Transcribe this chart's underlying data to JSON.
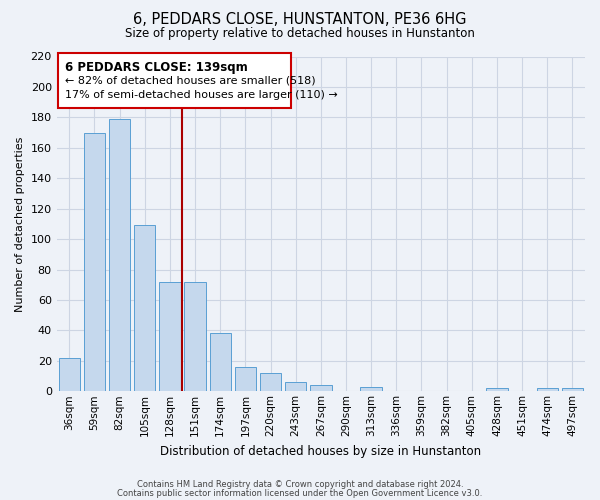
{
  "title": "6, PEDDARS CLOSE, HUNSTANTON, PE36 6HG",
  "subtitle": "Size of property relative to detached houses in Hunstanton",
  "xlabel": "Distribution of detached houses by size in Hunstanton",
  "ylabel": "Number of detached properties",
  "bin_labels": [
    "36sqm",
    "59sqm",
    "82sqm",
    "105sqm",
    "128sqm",
    "151sqm",
    "174sqm",
    "197sqm",
    "220sqm",
    "243sqm",
    "267sqm",
    "290sqm",
    "313sqm",
    "336sqm",
    "359sqm",
    "382sqm",
    "405sqm",
    "428sqm",
    "451sqm",
    "474sqm",
    "497sqm"
  ],
  "bar_values": [
    22,
    170,
    179,
    109,
    72,
    72,
    38,
    16,
    12,
    6,
    4,
    0,
    3,
    0,
    0,
    0,
    0,
    2,
    0,
    2,
    2
  ],
  "bar_color": "#c5d8ed",
  "bar_edge_color": "#5a9fd4",
  "vline_color": "#aa0000",
  "annotation_title": "6 PEDDARS CLOSE: 139sqm",
  "annotation_line1": "← 82% of detached houses are smaller (518)",
  "annotation_line2": "17% of semi-detached houses are larger (110) →",
  "annotation_box_edgecolor": "#cc0000",
  "footnote1": "Contains HM Land Registry data © Crown copyright and database right 2024.",
  "footnote2": "Contains public sector information licensed under the Open Government Licence v3.0.",
  "ylim": [
    0,
    220
  ],
  "yticks": [
    0,
    20,
    40,
    60,
    80,
    100,
    120,
    140,
    160,
    180,
    200,
    220
  ],
  "grid_color": "#cdd5e3",
  "background_color": "#eef2f8"
}
